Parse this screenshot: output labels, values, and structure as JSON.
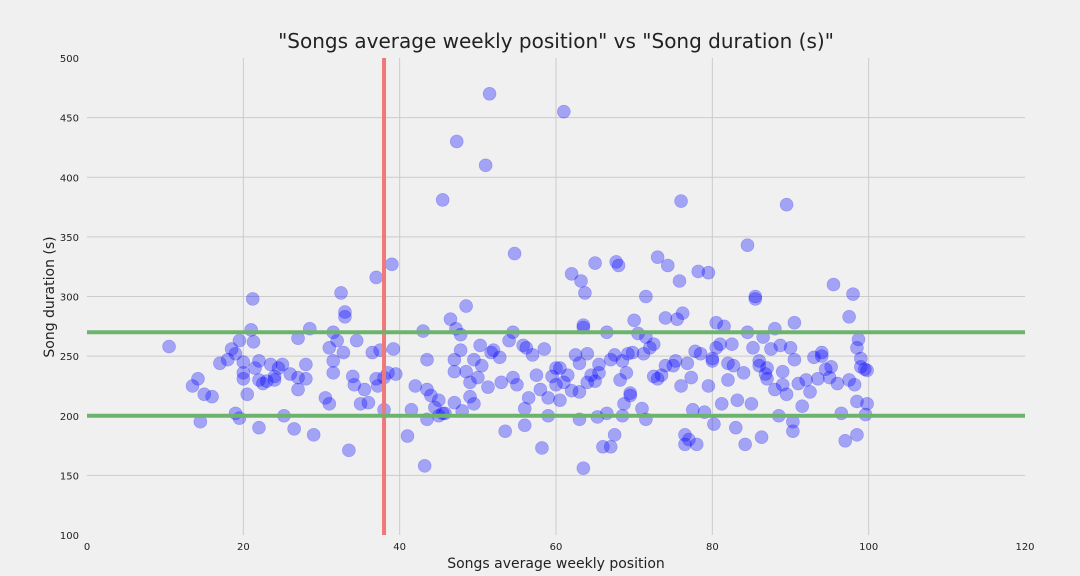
{
  "chart_data": {
    "type": "scatter",
    "title": "\"Songs average weekly position\" vs \"Song duration (s)\"",
    "xlabel": "Songs average weekly position",
    "ylabel": "Song duration (s)",
    "xlim": [
      0,
      120
    ],
    "ylim": [
      100,
      500
    ],
    "xticks": [
      0,
      20,
      40,
      60,
      80,
      100,
      120
    ],
    "yticks": [
      100,
      150,
      200,
      250,
      300,
      350,
      400,
      450,
      500
    ],
    "grid": true,
    "colors": {
      "points": "#0000ff",
      "vertical_line": "#f07878",
      "horizontal_lines": "#6db36d",
      "background": "#f0f0f0",
      "grid": "#cbcbcb"
    },
    "reference_lines": {
      "vertical_x": [
        38
      ],
      "horizontal_y": [
        200,
        270
      ]
    },
    "series": [
      {
        "points": [
          [
            10.5,
            258
          ],
          [
            13.5,
            225
          ],
          [
            14.2,
            231
          ],
          [
            14.5,
            195
          ],
          [
            15,
            218
          ],
          [
            16,
            216
          ],
          [
            17,
            244
          ],
          [
            18,
            247
          ],
          [
            18.5,
            256
          ],
          [
            19,
            202
          ],
          [
            19,
            252
          ],
          [
            19.5,
            198
          ],
          [
            19.5,
            263
          ],
          [
            20,
            245
          ],
          [
            20,
            231
          ],
          [
            20,
            236
          ],
          [
            20.5,
            218
          ],
          [
            21,
            272
          ],
          [
            21.2,
            298
          ],
          [
            21.3,
            262
          ],
          [
            21.5,
            240
          ],
          [
            22,
            246
          ],
          [
            22,
            190
          ],
          [
            22,
            230
          ],
          [
            22.5,
            227
          ],
          [
            23,
            229
          ],
          [
            23.5,
            243
          ],
          [
            24,
            233
          ],
          [
            24,
            230
          ],
          [
            24.5,
            240
          ],
          [
            25,
            243
          ],
          [
            25.2,
            200
          ],
          [
            26,
            235
          ],
          [
            26.5,
            189
          ],
          [
            27,
            232
          ],
          [
            27,
            222
          ],
          [
            27,
            265
          ],
          [
            28,
            231
          ],
          [
            28.5,
            273
          ],
          [
            29,
            184
          ],
          [
            28,
            243
          ],
          [
            30.5,
            215
          ],
          [
            31,
            210
          ],
          [
            31,
            257
          ],
          [
            31.5,
            270
          ],
          [
            31.5,
            246
          ],
          [
            31.5,
            236
          ],
          [
            32,
            263
          ],
          [
            32.5,
            303
          ],
          [
            32.8,
            253
          ],
          [
            33,
            283
          ],
          [
            33,
            287
          ],
          [
            33.5,
            171
          ],
          [
            34,
            233
          ],
          [
            34.2,
            226
          ],
          [
            34.5,
            263
          ],
          [
            35,
            210
          ],
          [
            35.5,
            222
          ],
          [
            36,
            211
          ],
          [
            36.5,
            253
          ],
          [
            37,
            231
          ],
          [
            37,
            316
          ],
          [
            37.2,
            225
          ],
          [
            37.5,
            255
          ],
          [
            38,
            205
          ],
          [
            38,
            232
          ],
          [
            38.5,
            236
          ],
          [
            39,
            327
          ],
          [
            39.2,
            256
          ],
          [
            39.5,
            235
          ],
          [
            41,
            183
          ],
          [
            41.5,
            205
          ],
          [
            42,
            225
          ],
          [
            43,
            271
          ],
          [
            43.2,
            158
          ],
          [
            43.5,
            247
          ],
          [
            43.5,
            222
          ],
          [
            43.5,
            197
          ],
          [
            44,
            217
          ],
          [
            44.5,
            207
          ],
          [
            45,
            200
          ],
          [
            45,
            213
          ],
          [
            45.5,
            381
          ],
          [
            45.5,
            202
          ],
          [
            45.8,
            202
          ],
          [
            46.5,
            281
          ],
          [
            47,
            211
          ],
          [
            47,
            237
          ],
          [
            47,
            247
          ],
          [
            47.2,
            273
          ],
          [
            47.3,
            430
          ],
          [
            47.8,
            255
          ],
          [
            47.8,
            268
          ],
          [
            48,
            204
          ],
          [
            48.5,
            237
          ],
          [
            48.5,
            292
          ],
          [
            49,
            216
          ],
          [
            49,
            228
          ],
          [
            49.5,
            210
          ],
          [
            49.5,
            247
          ],
          [
            50,
            232
          ],
          [
            50.3,
            259
          ],
          [
            50.5,
            242
          ],
          [
            51,
            410
          ],
          [
            51.3,
            224
          ],
          [
            51.5,
            470
          ],
          [
            51.7,
            253
          ],
          [
            52,
            255
          ],
          [
            52.8,
            249
          ],
          [
            53,
            228
          ],
          [
            53.5,
            187
          ],
          [
            54,
            263
          ],
          [
            54.5,
            232
          ],
          [
            54.5,
            270
          ],
          [
            54.7,
            336
          ],
          [
            55,
            226
          ],
          [
            55.8,
            259
          ],
          [
            56,
            206
          ],
          [
            56,
            192
          ],
          [
            56.2,
            257
          ],
          [
            56.5,
            215
          ],
          [
            57,
            251
          ],
          [
            57.5,
            234
          ],
          [
            58,
            222
          ],
          [
            58.2,
            173
          ],
          [
            58.5,
            256
          ],
          [
            59,
            200
          ],
          [
            59,
            215
          ],
          [
            59.5,
            233
          ],
          [
            60,
            226
          ],
          [
            60,
            240
          ],
          [
            60.5,
            213
          ],
          [
            60.5,
            240
          ],
          [
            61,
            228
          ],
          [
            61,
            455
          ],
          [
            61.5,
            234
          ],
          [
            62,
            221
          ],
          [
            62,
            319
          ],
          [
            62.5,
            251
          ],
          [
            63,
            197
          ],
          [
            63,
            220
          ],
          [
            63,
            244
          ],
          [
            63.2,
            313
          ],
          [
            63.5,
            276
          ],
          [
            63.5,
            274
          ],
          [
            63.5,
            156
          ],
          [
            63.7,
            303
          ],
          [
            64,
            228
          ],
          [
            64,
            252
          ],
          [
            64.5,
            234
          ],
          [
            65,
            229
          ],
          [
            65,
            328
          ],
          [
            65.3,
            199
          ],
          [
            65.5,
            243
          ],
          [
            65.5,
            236
          ],
          [
            66,
            174
          ],
          [
            66.5,
            202
          ],
          [
            66.5,
            270
          ],
          [
            67,
            247
          ],
          [
            67,
            174
          ],
          [
            67.5,
            251
          ],
          [
            67.5,
            184
          ],
          [
            67.7,
            329
          ],
          [
            68,
            326
          ],
          [
            68.2,
            230
          ],
          [
            68.5,
            200
          ],
          [
            68.5,
            246
          ],
          [
            68.7,
            210
          ],
          [
            69,
            236
          ],
          [
            69.2,
            252
          ],
          [
            69.5,
            219
          ],
          [
            69.5,
            217
          ],
          [
            69.8,
            253
          ],
          [
            70,
            280
          ],
          [
            70.5,
            269
          ],
          [
            71,
            206
          ],
          [
            71.2,
            252
          ],
          [
            71.5,
            197
          ],
          [
            71.5,
            300
          ],
          [
            71.5,
            266
          ],
          [
            72,
            257
          ],
          [
            72.5,
            233
          ],
          [
            72.5,
            260
          ],
          [
            73,
            333
          ],
          [
            73,
            231
          ],
          [
            73.5,
            234
          ],
          [
            74,
            242
          ],
          [
            74,
            282
          ],
          [
            74.3,
            326
          ],
          [
            75,
            242
          ],
          [
            75.3,
            246
          ],
          [
            75.5,
            281
          ],
          [
            75.8,
            313
          ],
          [
            76,
            225
          ],
          [
            76,
            380
          ],
          [
            76.2,
            286
          ],
          [
            76.5,
            184
          ],
          [
            76.5,
            176
          ],
          [
            76.8,
            244
          ],
          [
            77,
            180
          ],
          [
            77.3,
            232
          ],
          [
            77.5,
            205
          ],
          [
            77.8,
            254
          ],
          [
            78,
            176
          ],
          [
            78.2,
            321
          ],
          [
            78.5,
            252
          ],
          [
            79,
            203
          ],
          [
            79.5,
            225
          ],
          [
            79.5,
            320
          ],
          [
            80,
            248
          ],
          [
            80,
            246
          ],
          [
            80.2,
            193
          ],
          [
            80.5,
            257
          ],
          [
            80.5,
            278
          ],
          [
            81,
            260
          ],
          [
            81.2,
            210
          ],
          [
            81.5,
            275
          ],
          [
            82,
            230
          ],
          [
            82,
            244
          ],
          [
            82.5,
            260
          ],
          [
            82.7,
            242
          ],
          [
            83,
            190
          ],
          [
            83.2,
            213
          ],
          [
            84,
            236
          ],
          [
            84.2,
            176
          ],
          [
            84.5,
            343
          ],
          [
            84.5,
            270
          ],
          [
            85,
            210
          ],
          [
            85.2,
            257
          ],
          [
            85.5,
            298
          ],
          [
            85.5,
            300
          ],
          [
            86,
            242
          ],
          [
            86,
            246
          ],
          [
            86.3,
            182
          ],
          [
            86.5,
            266
          ],
          [
            86.8,
            235
          ],
          [
            87,
            231
          ],
          [
            87,
            240
          ],
          [
            87.5,
            256
          ],
          [
            88,
            222
          ],
          [
            88,
            273
          ],
          [
            88.5,
            200
          ],
          [
            88.7,
            259
          ],
          [
            89,
            226
          ],
          [
            89,
            237
          ],
          [
            89.5,
            218
          ],
          [
            89.5,
            377
          ],
          [
            90,
            257
          ],
          [
            90.3,
            195
          ],
          [
            90.3,
            187
          ],
          [
            90.5,
            278
          ],
          [
            90.5,
            247
          ],
          [
            91,
            227
          ],
          [
            91.5,
            208
          ],
          [
            92,
            230
          ],
          [
            92.5,
            220
          ],
          [
            93,
            249
          ],
          [
            93.5,
            231
          ],
          [
            94,
            253
          ],
          [
            94,
            250
          ],
          [
            94.5,
            239
          ],
          [
            95,
            232
          ],
          [
            95.2,
            241
          ],
          [
            95.5,
            310
          ],
          [
            96,
            227
          ],
          [
            96.5,
            202
          ],
          [
            97,
            179
          ],
          [
            97.5,
            283
          ],
          [
            97.5,
            230
          ],
          [
            98,
            302
          ],
          [
            98.2,
            226
          ],
          [
            98.5,
            212
          ],
          [
            98.5,
            257
          ],
          [
            98.5,
            184
          ],
          [
            98.7,
            264
          ],
          [
            99,
            248
          ],
          [
            99,
            241
          ],
          [
            99.5,
            239
          ],
          [
            99.8,
            238
          ],
          [
            99.8,
            210
          ],
          [
            99.6,
            201
          ]
        ]
      }
    ]
  }
}
